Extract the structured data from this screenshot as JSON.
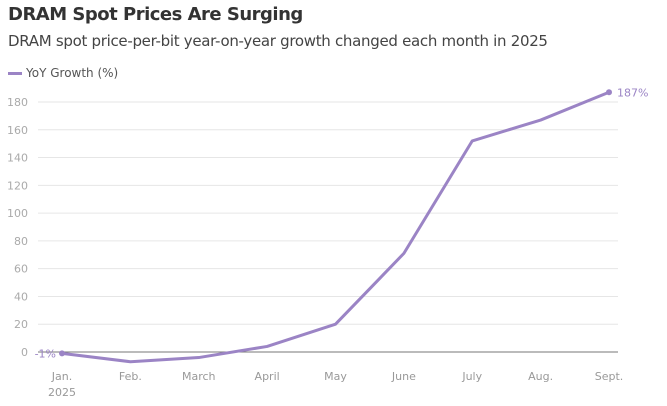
{
  "chart_data": {
    "type": "line",
    "title": "DRAM Spot Prices Are Surging",
    "subtitle": "DRAM spot price-per-bit year-on-year growth changed each month in 2025",
    "categories": [
      "Jan.",
      "Feb.",
      "March",
      "April",
      "May",
      "June",
      "July",
      "Aug.",
      "Sept."
    ],
    "category_sublabels": [
      "2025",
      "",
      "",
      "",
      "",
      "",
      "",
      "",
      ""
    ],
    "series": [
      {
        "name": "YoY Growth (%)",
        "values": [
          -1,
          -7,
          -4,
          4,
          20,
          71,
          152,
          167,
          187
        ],
        "color": "#9b84c5"
      }
    ],
    "data_labels": [
      {
        "index": 0,
        "text": "-1%"
      },
      {
        "index": 8,
        "text": "187%"
      }
    ],
    "yticks": [
      0,
      20,
      40,
      60,
      80,
      100,
      120,
      140,
      160,
      180
    ],
    "ylim": [
      -10,
      190
    ],
    "grid": true,
    "legend": "top-left"
  }
}
